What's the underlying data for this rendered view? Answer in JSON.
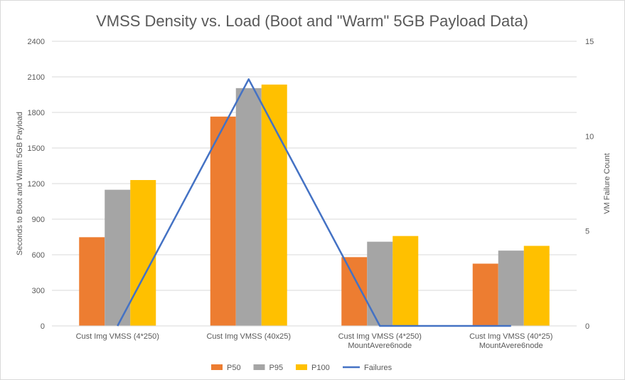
{
  "chart_data": {
    "type": "bar",
    "title": "VMSS Density vs. Load (Boot and \"Warm\" 5GB Payload Data)",
    "categories": [
      [
        "Cust Img VMSS (4*250)"
      ],
      [
        "Cust Img VMSS (40x25)"
      ],
      [
        "Cust Img VMSS (4*250)",
        "MountAvere6node"
      ],
      [
        "Cust Img VMSS (40*25)",
        "MountAvere6node"
      ]
    ],
    "ylabel": "Seconds to Boot and Warm 5GB Payload",
    "y2label": "VM Failure Count",
    "ylim": [
      0,
      2400
    ],
    "yticks": [
      0,
      300,
      600,
      900,
      1200,
      1500,
      1800,
      2100,
      2400
    ],
    "y2lim": [
      0,
      15
    ],
    "y2ticks": [
      0,
      5,
      10,
      15
    ],
    "grid": true,
    "legend_position": "bottom",
    "series": [
      {
        "name": "P50",
        "type": "bar",
        "axis": "left",
        "color": "#ED7D31",
        "values": [
          748,
          1765,
          580,
          525
        ]
      },
      {
        "name": "P95",
        "type": "bar",
        "axis": "left",
        "color": "#A5A5A5",
        "values": [
          1148,
          2005,
          710,
          635
        ]
      },
      {
        "name": "P100",
        "type": "bar",
        "axis": "left",
        "color": "#FFC000",
        "values": [
          1230,
          2035,
          758,
          675
        ]
      },
      {
        "name": "Failures",
        "type": "line",
        "axis": "right",
        "color": "#4472C4",
        "values": [
          0,
          13,
          0,
          0
        ]
      }
    ]
  }
}
